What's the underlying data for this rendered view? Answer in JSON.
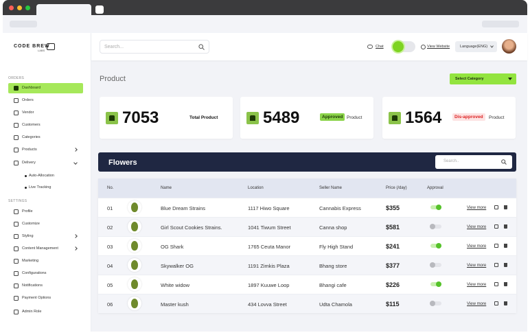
{
  "logo": {
    "name": "CODE BREW",
    "sub": "LABS"
  },
  "sidebar": {
    "sections": [
      {
        "title": "ORDERS",
        "items": [
          {
            "label": "Dashboard",
            "active": true
          },
          {
            "label": "Orders"
          },
          {
            "label": "Vendor"
          },
          {
            "label": "Customers"
          },
          {
            "label": "Categories"
          },
          {
            "label": "Products",
            "chevron": "right"
          },
          {
            "label": "Delivery",
            "chevron": "down"
          },
          {
            "label": "Auto-Allocation",
            "sub": true
          },
          {
            "label": "Live Tracking",
            "sub": true
          }
        ]
      },
      {
        "title": "SETTINGS",
        "items": [
          {
            "label": "Profile"
          },
          {
            "label": "Customize"
          },
          {
            "label": "Styling",
            "chevron": "right"
          },
          {
            "label": "Content Management",
            "chevron": "right"
          },
          {
            "label": "Marketing"
          },
          {
            "label": "Configurations"
          },
          {
            "label": "Notifications"
          },
          {
            "label": "Payment Options"
          },
          {
            "label": "Admin Role"
          }
        ]
      }
    ]
  },
  "topbar": {
    "search": "Search...",
    "chat": "Chat",
    "view_website": "View Website",
    "language": "Language(ENG)"
  },
  "page": {
    "title": "Product",
    "select": "Select Category"
  },
  "stats": [
    {
      "value": "7053",
      "label": "Total Product"
    },
    {
      "value": "5489",
      "badge": "Approved",
      "label": "Product"
    },
    {
      "value": "1564",
      "badge": "Dis-approved",
      "label": "Product"
    }
  ],
  "table": {
    "title": "Flowers",
    "search": "Search..",
    "columns": [
      "No.",
      "Name",
      "Location",
      "Seller Name",
      "Price (/day)",
      "Approval"
    ],
    "rows": [
      {
        "no": "01",
        "name": "Blue Dream Strains",
        "location": "1117 Hiwo Square",
        "seller": "Cannabis Express",
        "price": "$355",
        "approved": true,
        "action": "View more"
      },
      {
        "no": "02",
        "name": "Girl Scout Cookies Strains.",
        "location": "1041 Tiwum Street",
        "seller": "Canna shop",
        "price": "$581",
        "approved": false,
        "action": "View more"
      },
      {
        "no": "03",
        "name": "OG Shark",
        "location": "1765 Ceuta Manor",
        "seller": "Fly High Stand",
        "price": "$241",
        "approved": true,
        "action": "View more"
      },
      {
        "no": "04",
        "name": "Skywalker OG",
        "location": "1191 Zimkis Plaza",
        "seller": "Bhang store",
        "price": "$377",
        "approved": false,
        "action": "View more"
      },
      {
        "no": "05",
        "name": "White widow",
        "location": "1897 Kuuwe Loop",
        "seller": "Bhangi cafe",
        "price": "$226",
        "approved": true,
        "action": "View more"
      },
      {
        "no": "06",
        "name": "Master kush",
        "location": "434 Lovva Street",
        "seller": "Udta Chamola",
        "price": "$115",
        "approved": false,
        "action": "View more"
      }
    ]
  }
}
